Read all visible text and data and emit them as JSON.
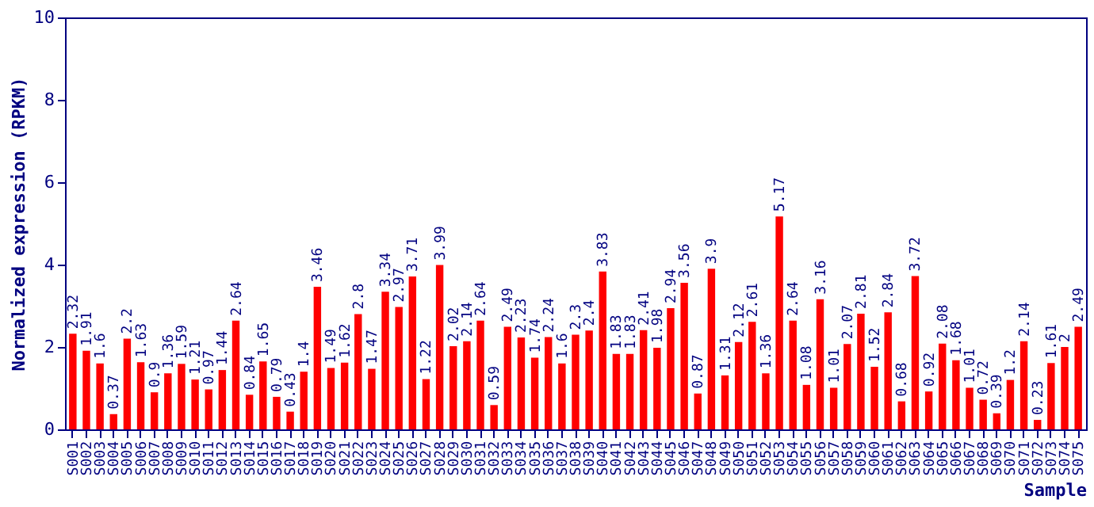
{
  "chart_data": {
    "type": "bar",
    "xlabel": "Sample",
    "ylabel": "Normalized expression (RPKM)",
    "categories": [
      "S001",
      "S002",
      "S003",
      "S004",
      "S005",
      "S006",
      "S007",
      "S008",
      "S009",
      "S010",
      "S011",
      "S012",
      "S013",
      "S014",
      "S015",
      "S016",
      "S017",
      "S018",
      "S019",
      "S020",
      "S021",
      "S022",
      "S023",
      "S024",
      "S025",
      "S026",
      "S027",
      "S028",
      "S029",
      "S030",
      "S031",
      "S032",
      "S033",
      "S034",
      "S035",
      "S036",
      "S037",
      "S038",
      "S039",
      "S040",
      "S041",
      "S042",
      "S043",
      "S044",
      "S045",
      "S046",
      "S047",
      "S048",
      "S049",
      "S050",
      "S051",
      "S052",
      "S053",
      "S054",
      "S055",
      "S056",
      "S057",
      "S058",
      "S059",
      "S060",
      "S061",
      "S062",
      "S063",
      "S064",
      "S065",
      "S066",
      "S067",
      "S068",
      "S069",
      "S070",
      "S071",
      "S072",
      "S073",
      "S074",
      "S075"
    ],
    "values": [
      2.32,
      1.91,
      1.6,
      0.37,
      2.2,
      1.63,
      0.9,
      1.36,
      1.59,
      1.21,
      0.97,
      1.44,
      2.64,
      0.84,
      1.65,
      0.79,
      0.43,
      1.4,
      3.46,
      1.49,
      1.62,
      2.8,
      1.47,
      3.34,
      2.97,
      3.71,
      1.22,
      3.99,
      2.02,
      2.14,
      2.64,
      0.59,
      2.49,
      2.23,
      1.74,
      2.24,
      1.6,
      2.3,
      2.4,
      3.83,
      1.83,
      1.83,
      2.41,
      1.98,
      2.94,
      3.56,
      0.87,
      3.9,
      1.31,
      2.12,
      2.61,
      1.36,
      5.17,
      2.64,
      1.08,
      3.16,
      1.01,
      2.07,
      2.81,
      1.52,
      2.84,
      0.68,
      3.72,
      0.92,
      2.08,
      1.68,
      1.01,
      0.72,
      0.39,
      1.2,
      2.14,
      0.23,
      1.61,
      2,
      2.49
    ],
    "color": "#ff0000",
    "ylim": [
      0,
      10
    ],
    "yticks": [
      0,
      2,
      4,
      6,
      8,
      10
    ],
    "grid": false,
    "data_labels": true
  }
}
